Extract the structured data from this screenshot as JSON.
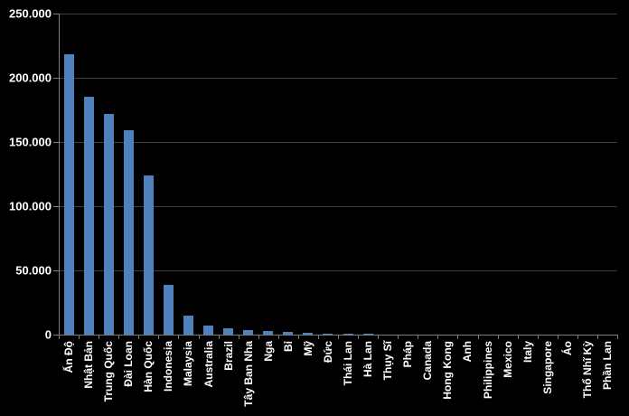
{
  "chart_data": {
    "type": "bar",
    "title": "",
    "xlabel": "",
    "ylabel": "",
    "categories": [
      "Ấn Độ",
      "Nhật Bản",
      "Trung Quốc",
      "Đài Loan",
      "Hàn Quốc",
      "Indonesia",
      "Malaysia",
      "Australia",
      "Brazil",
      "Tây Ban Nha",
      "Nga",
      "Bỉ",
      "Mỹ",
      "Đức",
      "Thái Lan",
      "Hà Lan",
      "Thụy Sĩ",
      "Pháp",
      "Canada",
      "Hong Kong",
      "Anh",
      "Philippines",
      "Mexico",
      "Italy",
      "Singapore",
      "Áo",
      "Thổ Nhĩ Kỳ",
      "Phần Lan"
    ],
    "values": [
      218000,
      185000,
      172000,
      159000,
      124000,
      39000,
      15000,
      7000,
      5000,
      3500,
      3000,
      2000,
      1500,
      1000,
      800,
      400,
      300,
      250,
      200,
      150,
      120,
      100,
      90,
      80,
      70,
      60,
      50,
      40
    ],
    "ylim": [
      0,
      250000
    ],
    "ytick_interval": 50000,
    "ytick_labels": [
      "0",
      "50.000",
      "100.000",
      "150.000",
      "200.000",
      "250.000"
    ],
    "grid": true,
    "legend": false,
    "x_labels_rotated_90": true,
    "colors": {
      "background": "#000000",
      "bar": "#4F81BD",
      "gridline": "#3F3F3F",
      "axis": "#7F7F7F",
      "tick_text": "#FFFFFF"
    }
  }
}
